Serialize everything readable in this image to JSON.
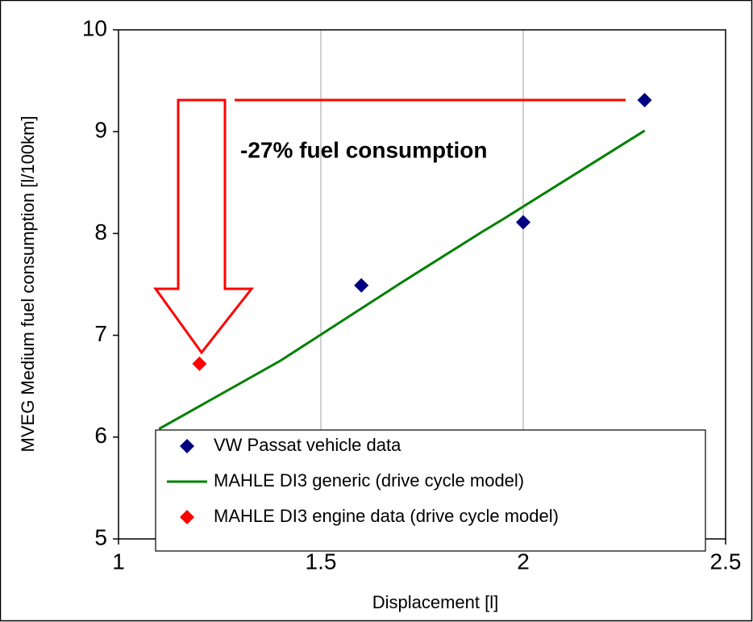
{
  "chart_data": {
    "type": "scatter",
    "xlabel": "Displacement [l]",
    "ylabel": "MVEG Medium fuel consumption [l/100km]",
    "annotations": [
      "-27% fuel consumption"
    ],
    "series": [
      {
        "name": "VW Passat vehicle data",
        "type": "scatter",
        "color": "#000080",
        "x": [
          1.6,
          2.0,
          2.3
        ],
        "values": [
          7.49,
          8.11,
          9.31
        ]
      },
      {
        "name": "MAHLE DI3 generic (drive cycle model)",
        "type": "line",
        "color": "#008000",
        "x": [
          1.1,
          1.4,
          1.7,
          1.9,
          1.95,
          2.3
        ],
        "values": [
          6.08,
          6.75,
          7.52,
          8.02,
          8.14,
          9.01
        ]
      },
      {
        "name": "MAHLE DI3 engine data (drive cycle model)",
        "type": "scatter",
        "color": "#ff0000",
        "x": [
          1.2
        ],
        "values": [
          6.72
        ]
      }
    ],
    "xlim": [
      1,
      2.5
    ],
    "xticks": [
      1,
      1.5,
      2,
      2.5
    ],
    "ylim": [
      5,
      10
    ],
    "yticks": [
      5,
      6,
      7,
      8,
      9,
      10
    ],
    "grid": "x",
    "legend": "lower left"
  }
}
